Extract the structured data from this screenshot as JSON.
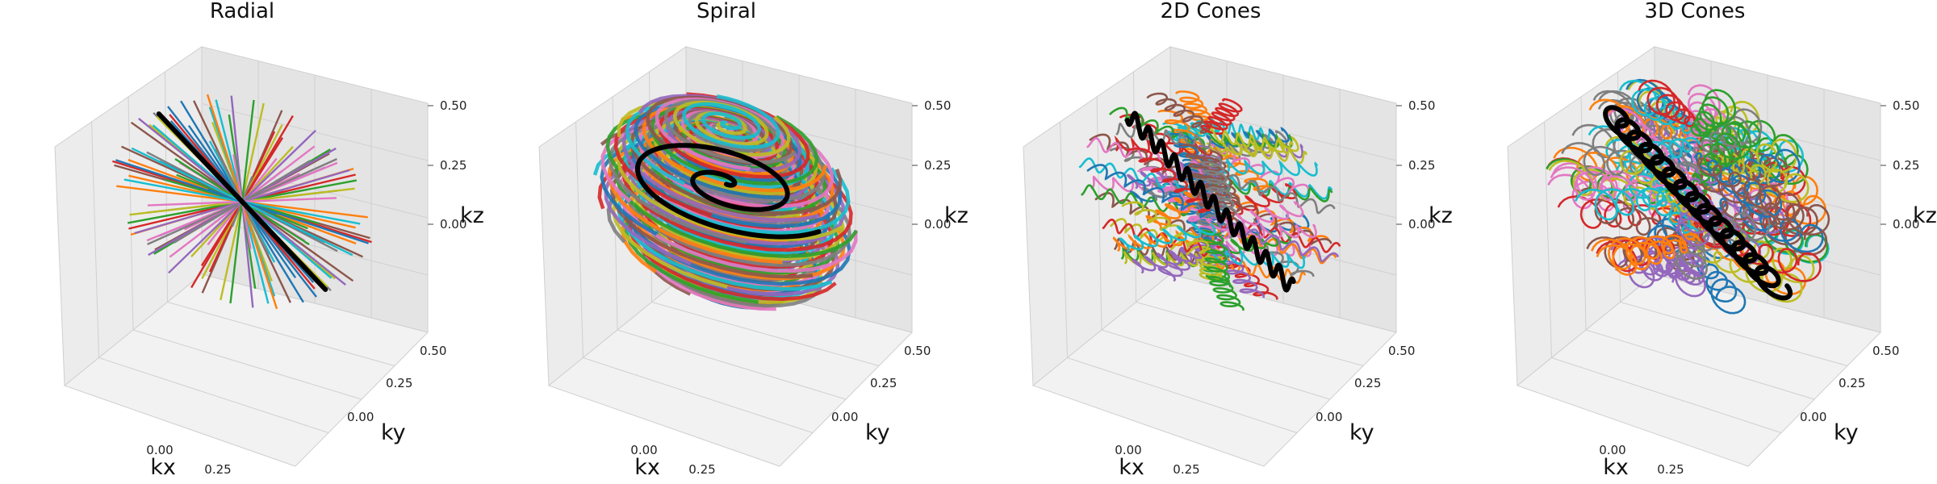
{
  "chart_data": [
    {
      "type": "line3d",
      "title": "Radial",
      "trajectory": "radial",
      "xlabel": "kx",
      "ylabel": "ky",
      "zlabel": "kz",
      "xlim": [
        -0.5,
        0.5
      ],
      "ylim": [
        -0.5,
        0.5
      ],
      "zlim": [
        -0.5,
        0.5
      ],
      "x_ticks": [
        "0.00",
        "0.25"
      ],
      "y_ticks": [
        "0.00",
        "0.25",
        "0.50"
      ],
      "z_ticks": [
        "0.00",
        "0.25",
        "0.50"
      ],
      "grid": true,
      "legend": "none",
      "highlight_color": "#000000",
      "highlighted_line": {
        "x": [
          -0.42,
          0.42
        ],
        "y": [
          0.1,
          -0.1
        ],
        "z": [
          0.2,
          -0.2
        ]
      }
    },
    {
      "type": "line3d",
      "title": "Spiral",
      "trajectory": "stack-of-spirals",
      "xlabel": "kx",
      "ylabel": "ky",
      "zlabel": "kz",
      "xlim": [
        -0.5,
        0.5
      ],
      "ylim": [
        -0.5,
        0.5
      ],
      "zlim": [
        -0.5,
        0.5
      ],
      "x_ticks": [
        "0.00",
        "0.25"
      ],
      "y_ticks": [
        "0.00",
        "0.25",
        "0.50"
      ],
      "z_ticks": [
        "0.00",
        "0.25",
        "0.50"
      ],
      "grid": true,
      "legend": "none",
      "highlight_color": "#000000"
    },
    {
      "type": "line3d",
      "title": "2D Cones",
      "trajectory": "2d-cones",
      "xlabel": "kx",
      "ylabel": "ky",
      "zlabel": "kz",
      "xlim": [
        -0.5,
        0.5
      ],
      "ylim": [
        -0.5,
        0.5
      ],
      "zlim": [
        -0.5,
        0.5
      ],
      "x_ticks": [
        "0.00",
        "0.25"
      ],
      "y_ticks": [
        "0.00",
        "0.25",
        "0.50"
      ],
      "z_ticks": [
        "0.00",
        "0.25",
        "0.50"
      ],
      "grid": true,
      "legend": "none",
      "highlight_color": "#000000"
    },
    {
      "type": "line3d",
      "title": "3D Cones",
      "trajectory": "3d-cones",
      "xlabel": "kx",
      "ylabel": "ky",
      "zlabel": "kz",
      "xlim": [
        -0.5,
        0.5
      ],
      "ylim": [
        -0.5,
        0.5
      ],
      "zlim": [
        -0.5,
        0.5
      ],
      "x_ticks": [
        "0.00",
        "0.25"
      ],
      "y_ticks": [
        "0.00",
        "0.25",
        "0.50"
      ],
      "z_ticks": [
        "0.00",
        "0.25",
        "0.50"
      ],
      "grid": true,
      "legend": "none",
      "highlight_color": "#000000"
    }
  ],
  "colors": {
    "palette": [
      "#1f77b4",
      "#ff7f0e",
      "#2ca02c",
      "#d62728",
      "#9467bd",
      "#8c564b",
      "#e377c2",
      "#7f7f7f",
      "#bcbd22",
      "#17becf"
    ],
    "pane_left": "#ececec",
    "pane_right": "#e4e4e4",
    "pane_floor": "#f2f2f2",
    "grid": "#d0d0d0"
  }
}
